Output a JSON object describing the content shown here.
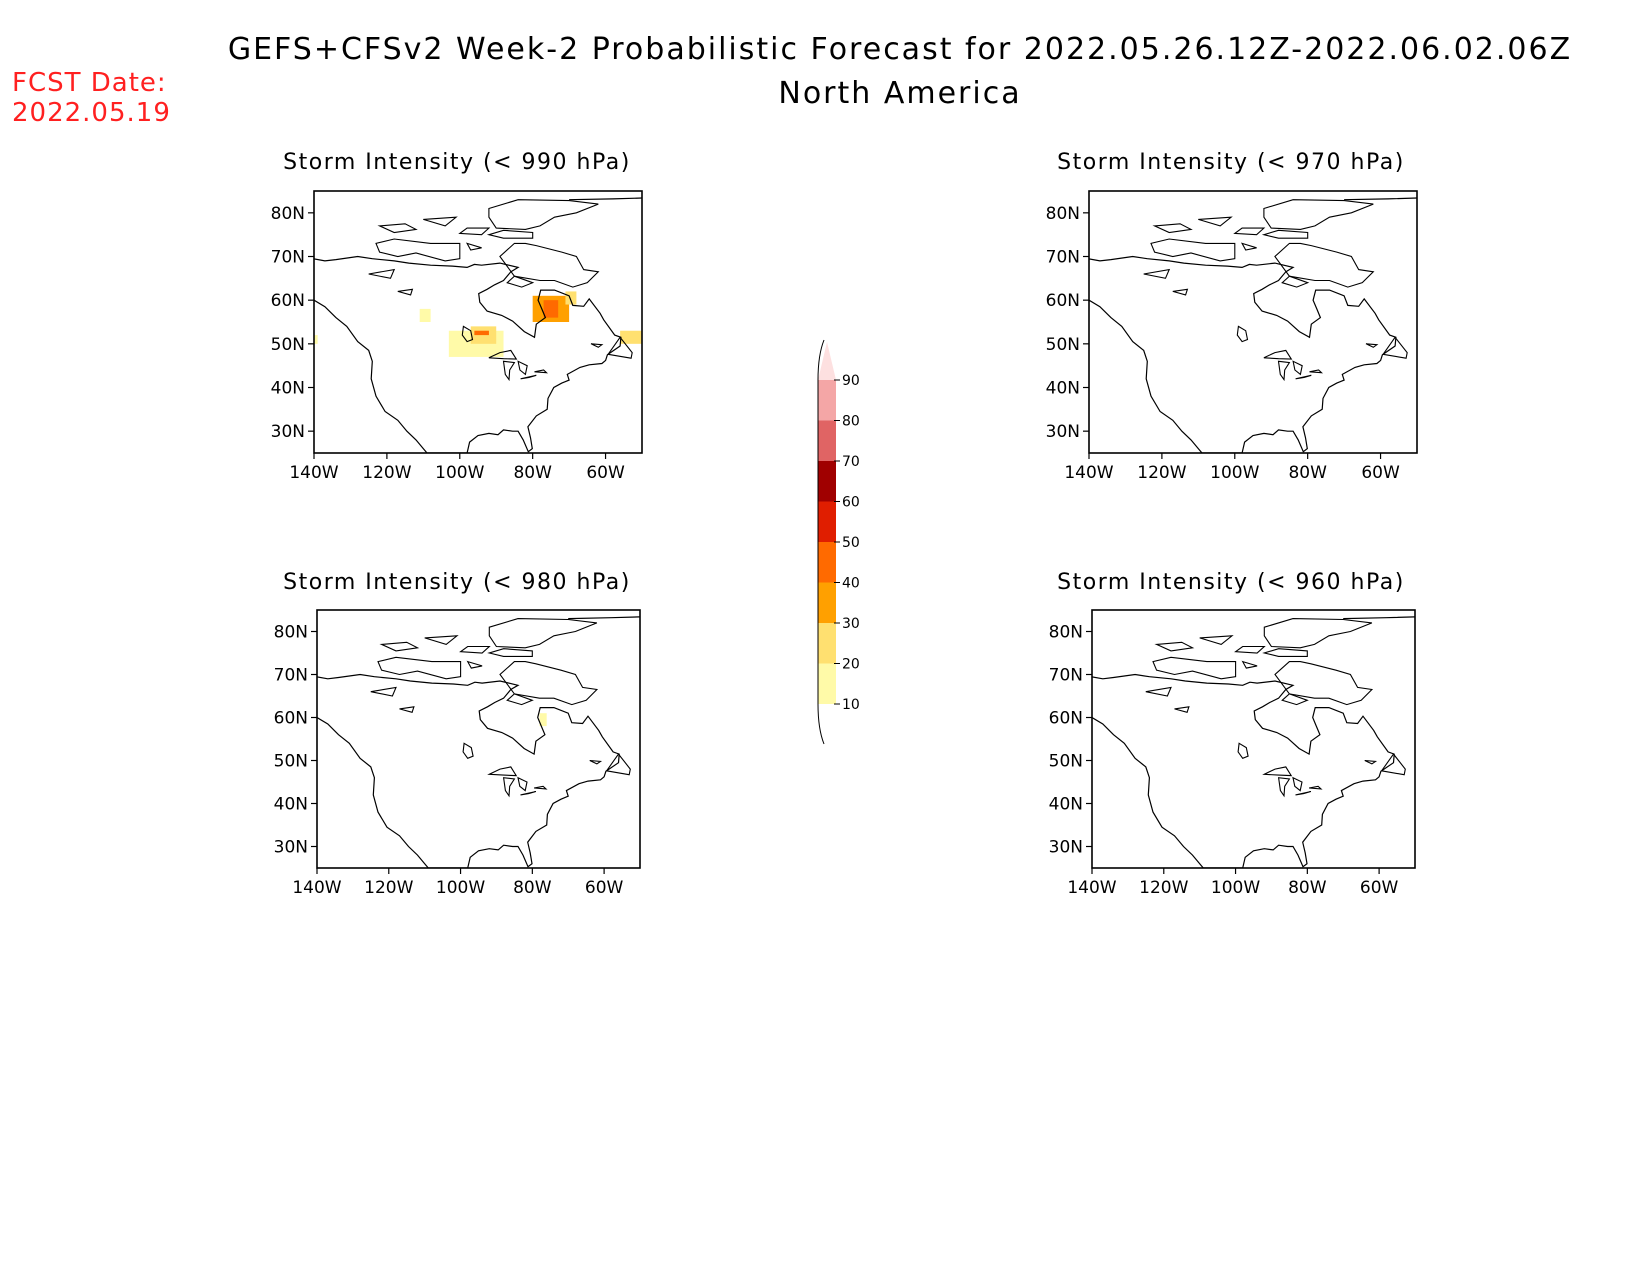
{
  "header": {
    "title": "GEFS+CFSv2 Week-2 Probabilistic Forecast for 2022.05.26.12Z-2022.06.02.06Z",
    "subtitle": "North America",
    "fcst_label": "FCST Date:",
    "fcst_date": "2022.05.19",
    "fcst_color": "#ff2020"
  },
  "axes": {
    "lat_ticks": [
      "80N",
      "70N",
      "60N",
      "50N",
      "40N",
      "30N"
    ],
    "lon_ticks": [
      "140W",
      "120W",
      "100W",
      "80W",
      "60W"
    ]
  },
  "panels": [
    {
      "title": "Storm Intensity (< 990 hPa)"
    },
    {
      "title": "Storm Intensity (< 970 hPa)"
    },
    {
      "title": "Storm Intensity (< 980 hPa)"
    },
    {
      "title": "Storm Intensity (< 960 hPa)"
    }
  ],
  "colorbar": {
    "labels": [
      "90",
      "80",
      "70",
      "60",
      "50",
      "40",
      "30",
      "20",
      "10"
    ],
    "colors": [
      "#fde0e0",
      "#f4a6a6",
      "#e06464",
      "#a00000",
      "#e01e00",
      "#ff6a00",
      "#ffa000",
      "#ffe070",
      "#fffaa8"
    ]
  },
  "chart_data": {
    "type": "heatmap",
    "region": "North America",
    "lat_range": [
      "25N",
      "85N"
    ],
    "lon_range": [
      "140W",
      "50W"
    ],
    "legend_levels": [
      10,
      20,
      30,
      40,
      50,
      60,
      70,
      80,
      90
    ],
    "panels": [
      {
        "threshold": "< 990 hPa",
        "probability_regions": [
          {
            "lon": [
              -103,
              -88
            ],
            "lat": [
              47,
              53
            ],
            "level": 10
          },
          {
            "lon": [
              -97,
              -90
            ],
            "lat": [
              50,
              54
            ],
            "level": 20
          },
          {
            "lon": [
              -96,
              -92
            ],
            "lat": [
              52,
              53
            ],
            "level": 40
          },
          {
            "lon": [
              -80,
              -70
            ],
            "lat": [
              55,
              61
            ],
            "level": 30
          },
          {
            "lon": [
              -77,
              -73
            ],
            "lat": [
              56,
              60
            ],
            "level": 40
          },
          {
            "lon": [
              -71,
              -68
            ],
            "lat": [
              59,
              62
            ],
            "level": 20
          },
          {
            "lon": [
              -56,
              -50
            ],
            "lat": [
              50,
              53
            ],
            "level": 20
          },
          {
            "lon": [
              -140,
              -139
            ],
            "lat": [
              50,
              52
            ],
            "level": 10
          },
          {
            "lon": [
              -111,
              -108
            ],
            "lat": [
              55,
              58
            ],
            "level": 10
          }
        ]
      },
      {
        "threshold": "< 970 hPa",
        "probability_regions": []
      },
      {
        "threshold": "< 980 hPa",
        "probability_regions": [
          {
            "lon": [
              -78,
              -76
            ],
            "lat": [
              58,
              61
            ],
            "level": 10
          }
        ]
      },
      {
        "threshold": "< 960 hPa",
        "probability_regions": []
      }
    ]
  }
}
